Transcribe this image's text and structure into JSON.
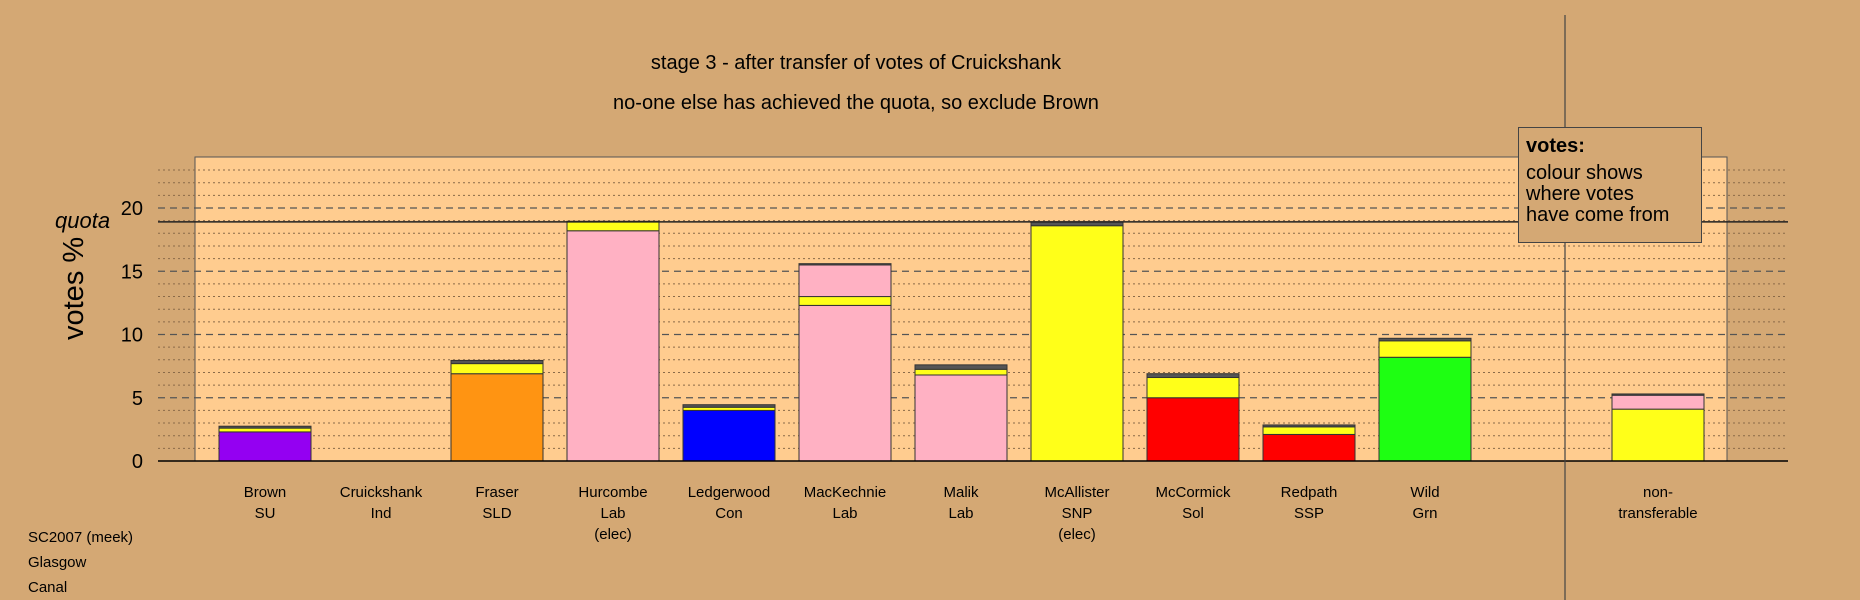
{
  "title_line1": "stage 3 - after transfer of votes of Cruickshank",
  "title_line2": "no-one else has achieved the quota, so exclude Brown",
  "legend": {
    "heading": "votes:",
    "lines": [
      "colour shows",
      "where votes",
      "have come from"
    ]
  },
  "footer": [
    "SC2007 (meek)",
    "Glasgow",
    "Canal"
  ],
  "colors": {
    "background": "#d4a874",
    "plot_background": "#ffcc8f",
    "SU": "#9400f2",
    "SLD": "#ff9412",
    "Lab": "#ffb1c3",
    "Con": "#0000ff",
    "SNP": "#ffff19",
    "Sol": "#ff0000",
    "SSP": "#ff0000",
    "Grn": "#1eff12",
    "other": "#555555"
  },
  "chart_data": {
    "type": "bar",
    "stacked": true,
    "ylabel": "votes %",
    "ylim": [
      0,
      24
    ],
    "yticks": [
      0,
      5,
      10,
      15,
      20
    ],
    "quota": 18.9,
    "quota_label": "quota",
    "grid": true,
    "categories": [
      {
        "name": "Brown",
        "party": "SU",
        "note": ""
      },
      {
        "name": "Cruickshank",
        "party": "Ind",
        "note": ""
      },
      {
        "name": "Fraser",
        "party": "SLD",
        "note": ""
      },
      {
        "name": "Hurcombe",
        "party": "Lab",
        "note": "(elec)"
      },
      {
        "name": "Ledgerwood",
        "party": "Con",
        "note": ""
      },
      {
        "name": "MacKechnie",
        "party": "Lab",
        "note": ""
      },
      {
        "name": "Malik",
        "party": "Lab",
        "note": ""
      },
      {
        "name": "McAllister",
        "party": "SNP",
        "note": "(elec)"
      },
      {
        "name": "McCormick",
        "party": "Sol",
        "note": ""
      },
      {
        "name": "Redpath",
        "party": "SSP",
        "note": ""
      },
      {
        "name": "Wild",
        "party": "Grn",
        "note": ""
      },
      {
        "name": "non-",
        "party": "transferable",
        "note": ""
      }
    ],
    "bars": [
      [
        {
          "from": "SU",
          "value": 2.3
        },
        {
          "from": "SNP",
          "value": 0.3
        },
        {
          "from": "other",
          "value": 0.15
        }
      ],
      [],
      [
        {
          "from": "SLD",
          "value": 6.9
        },
        {
          "from": "SNP",
          "value": 0.8
        },
        {
          "from": "other",
          "value": 0.25
        }
      ],
      [
        {
          "from": "Lab",
          "value": 18.2
        },
        {
          "from": "SNP",
          "value": 0.75
        }
      ],
      [
        {
          "from": "Con",
          "value": 4.0
        },
        {
          "from": "SNP",
          "value": 0.25
        },
        {
          "from": "other",
          "value": 0.2
        }
      ],
      [
        {
          "from": "Lab",
          "value": 12.3
        },
        {
          "from": "SNP",
          "value": 0.7
        },
        {
          "from": "Lab",
          "value": 2.5
        },
        {
          "from": "other",
          "value": 0.1
        }
      ],
      [
        {
          "from": "Lab",
          "value": 6.8
        },
        {
          "from": "SNP",
          "value": 0.45
        },
        {
          "from": "other",
          "value": 0.35
        }
      ],
      [
        {
          "from": "SNP",
          "value": 18.6
        },
        {
          "from": "other",
          "value": 0.3
        }
      ],
      [
        {
          "from": "Sol",
          "value": 5.0
        },
        {
          "from": "SNP",
          "value": 1.6
        },
        {
          "from": "other",
          "value": 0.3
        }
      ],
      [
        {
          "from": "SSP",
          "value": 2.1
        },
        {
          "from": "SNP",
          "value": 0.6
        },
        {
          "from": "other",
          "value": 0.15
        }
      ],
      [
        {
          "from": "Grn",
          "value": 8.2
        },
        {
          "from": "SNP",
          "value": 1.3
        },
        {
          "from": "other",
          "value": 0.2
        }
      ],
      [
        {
          "from": "SNP",
          "value": 4.1
        },
        {
          "from": "Lab",
          "value": 1.1
        },
        {
          "from": "other",
          "value": 0.1
        }
      ]
    ]
  }
}
